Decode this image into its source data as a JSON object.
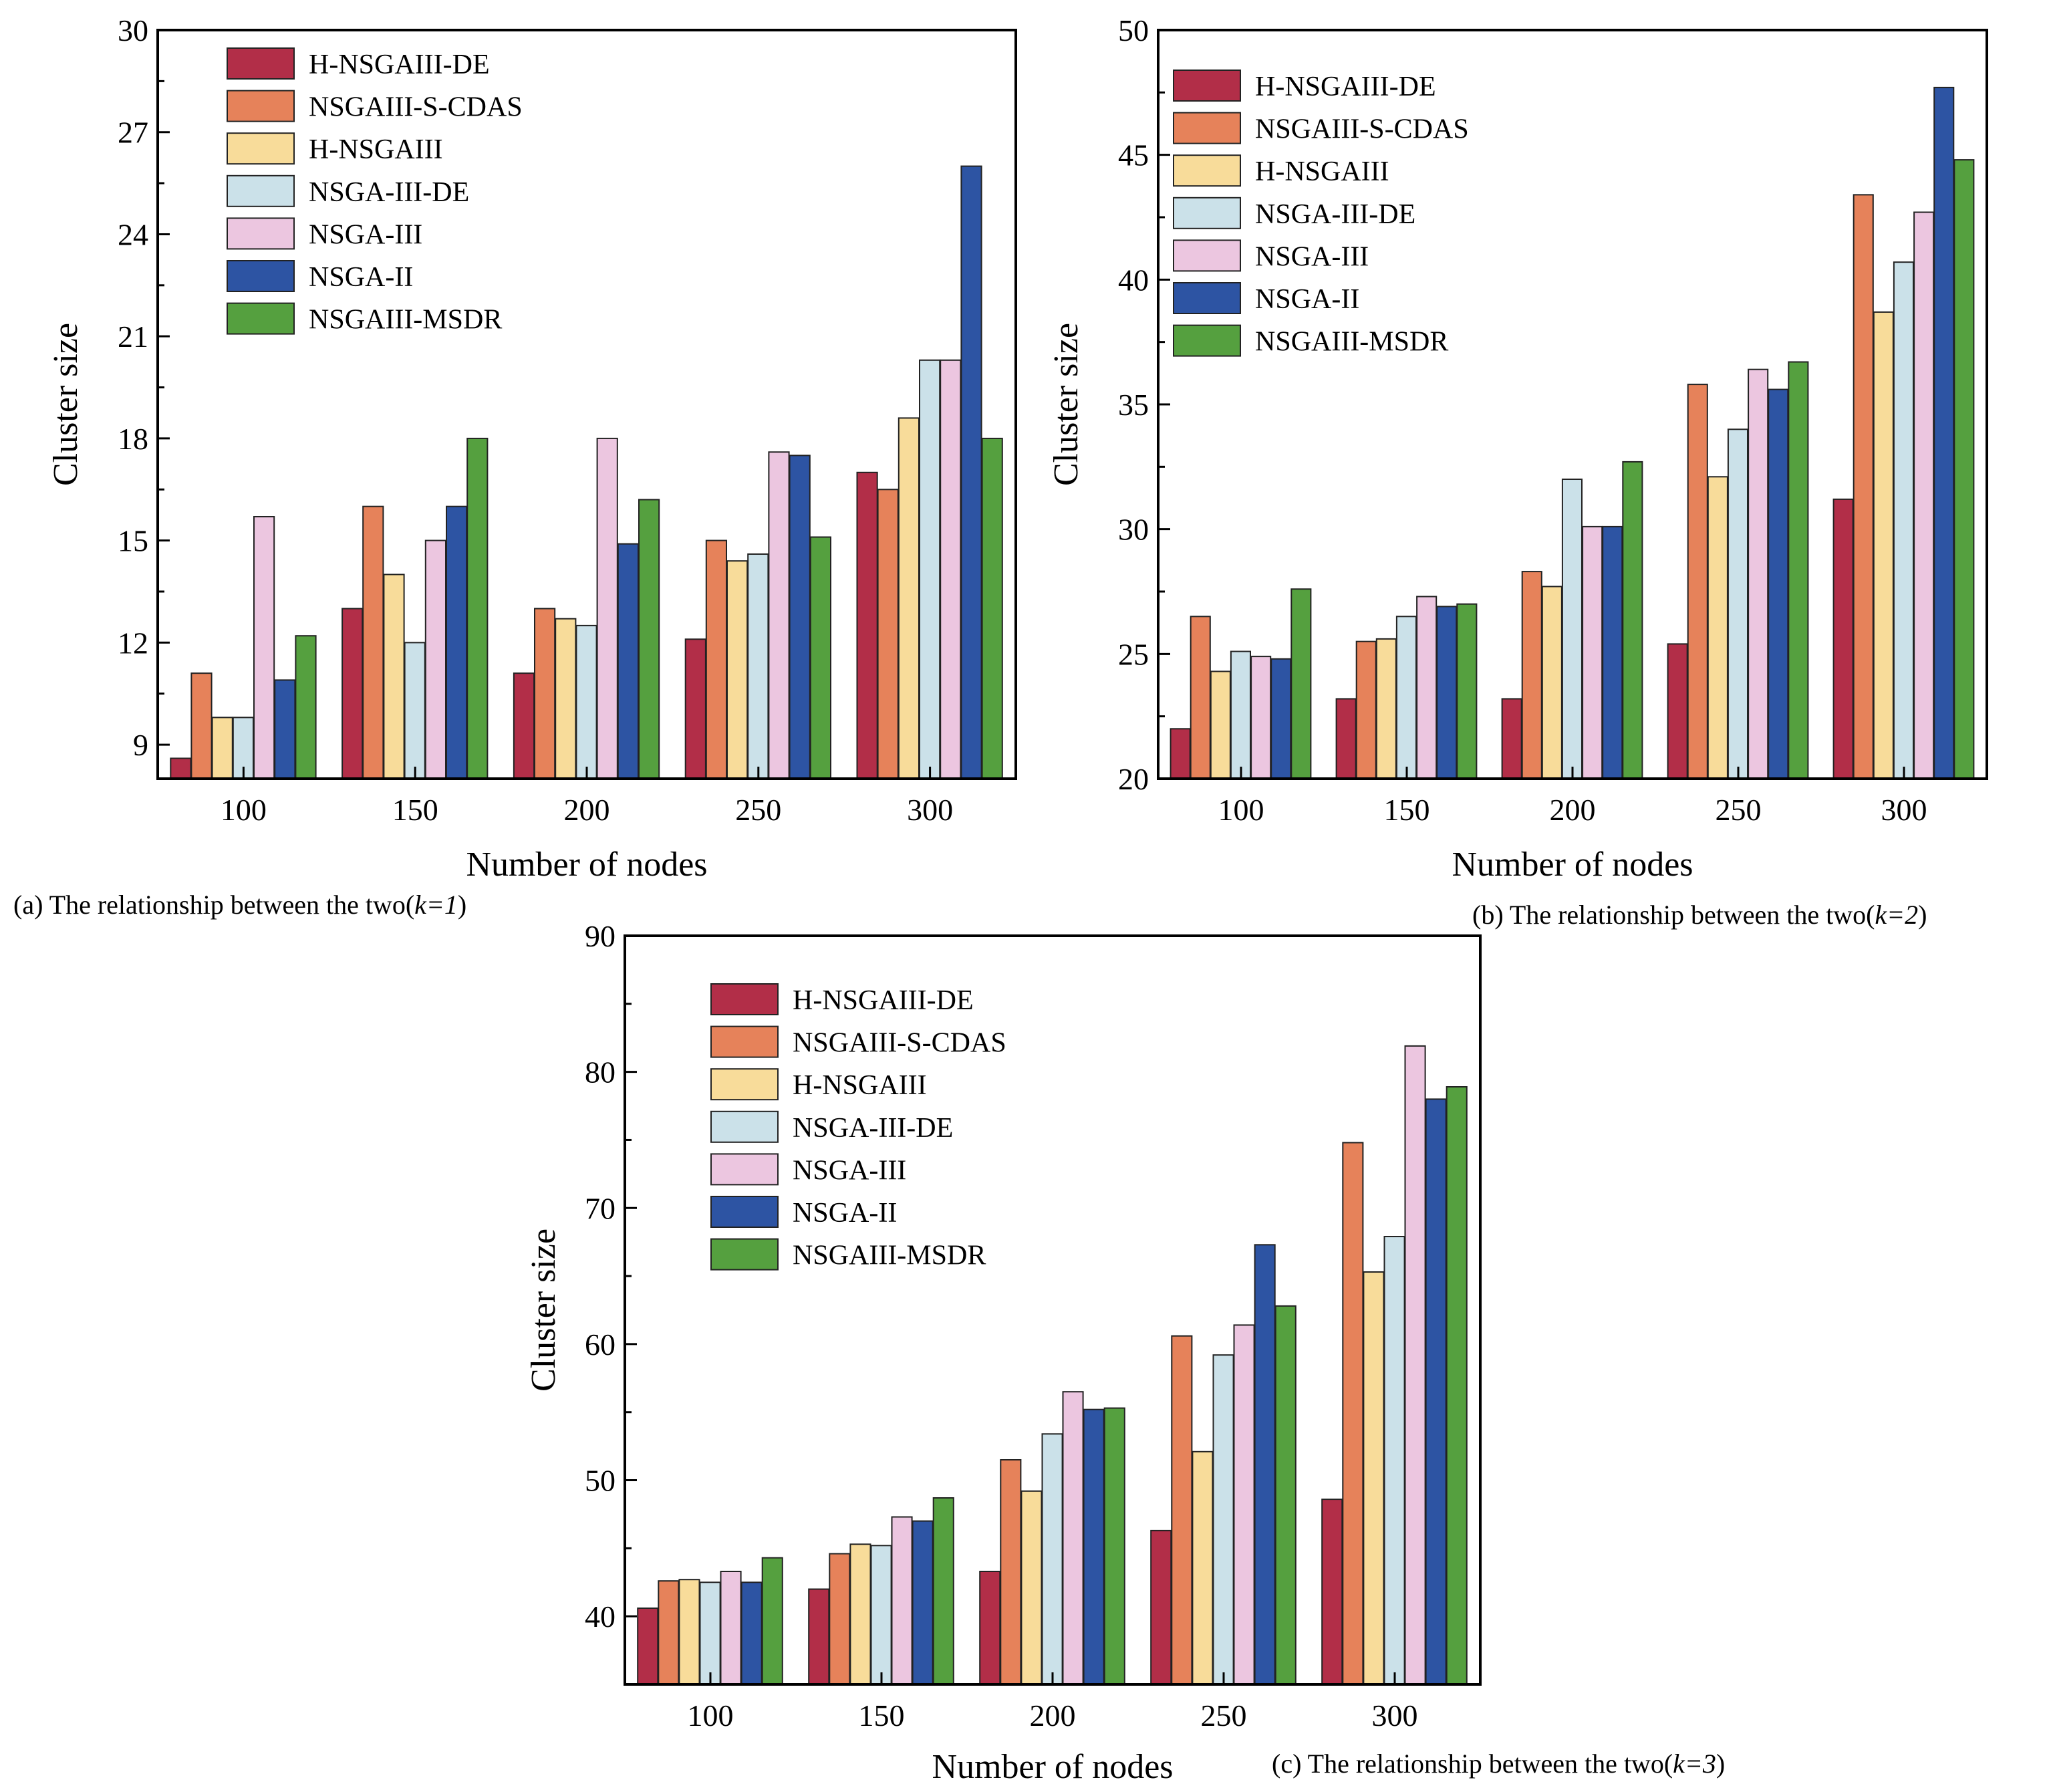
{
  "colors": {
    "H-NSGAIII-DE": "#b22e48",
    "NSGAIII-S-CDAS": "#e6825a",
    "H-NSGAIII": "#f8dc9a",
    "NSGA-III-DE": "#cbe1e9",
    "NSGA-III": "#ecc6e0",
    "NSGA-II": "#2d54a3",
    "NSGAIII-MSDR": "#55a03f"
  },
  "charts": [
    {
      "id": "a",
      "caption": {
        "prefix": "(a) The relationship between the two(",
        "k": "k=1",
        "suffix": ")"
      },
      "chart_data": {
        "type": "bar",
        "categories": [
          "100",
          "150",
          "200",
          "250",
          "300"
        ],
        "xlabel": "Number of nodes",
        "ylabel": "Cluster size",
        "ylim": [
          8,
          30
        ],
        "yticks": [
          "9",
          "12",
          "15",
          "18",
          "21",
          "24",
          "27",
          "30"
        ],
        "legend_position": "top-left",
        "series": [
          {
            "name": "H-NSGAIII-DE",
            "values": [
              8.6,
              13.0,
              11.1,
              12.1,
              17.0
            ]
          },
          {
            "name": "NSGAIII-S-CDAS",
            "values": [
              11.1,
              16.0,
              13.0,
              15.0,
              16.5
            ]
          },
          {
            "name": "H-NSGAIII",
            "values": [
              9.8,
              14.0,
              12.7,
              14.4,
              18.6
            ]
          },
          {
            "name": "NSGA-III-DE",
            "values": [
              9.8,
              12.0,
              12.5,
              14.6,
              20.3
            ]
          },
          {
            "name": "NSGA-III",
            "values": [
              15.7,
              15.0,
              18.0,
              17.6,
              20.3
            ]
          },
          {
            "name": "NSGA-II",
            "values": [
              10.9,
              16.0,
              14.9,
              17.5,
              26.0
            ]
          },
          {
            "name": "NSGAIII-MSDR",
            "values": [
              12.2,
              18.0,
              16.2,
              15.1,
              18.0
            ]
          }
        ]
      }
    },
    {
      "id": "b",
      "caption": {
        "prefix": "(b) The relationship between the two(",
        "k": "k=2",
        "suffix": ")"
      },
      "chart_data": {
        "type": "bar",
        "categories": [
          "100",
          "150",
          "200",
          "250",
          "300"
        ],
        "xlabel": "Number of nodes",
        "ylabel": "Cluster size",
        "ylim": [
          20,
          50
        ],
        "yticks": [
          "20",
          "25",
          "30",
          "35",
          "40",
          "45",
          "50"
        ],
        "legend_position": "top-left",
        "series": [
          {
            "name": "H-NSGAIII-DE",
            "values": [
              22.0,
              23.2,
              23.2,
              25.4,
              31.2
            ]
          },
          {
            "name": "NSGAIII-S-CDAS",
            "values": [
              26.5,
              25.5,
              28.3,
              35.8,
              43.4
            ]
          },
          {
            "name": "H-NSGAIII",
            "values": [
              24.3,
              25.6,
              27.7,
              32.1,
              38.7
            ]
          },
          {
            "name": "NSGA-III-DE",
            "values": [
              25.1,
              26.5,
              32.0,
              34.0,
              40.7
            ]
          },
          {
            "name": "NSGA-III",
            "values": [
              24.9,
              27.3,
              30.1,
              36.4,
              42.7
            ]
          },
          {
            "name": "NSGA-II",
            "values": [
              24.8,
              26.9,
              30.1,
              35.6,
              47.7
            ]
          },
          {
            "name": "NSGAIII-MSDR",
            "values": [
              27.6,
              27.0,
              32.7,
              36.7,
              44.8
            ]
          }
        ]
      }
    },
    {
      "id": "c",
      "caption": {
        "prefix": "(c) The relationship between the two(",
        "k": "k=3",
        "suffix": ")"
      },
      "chart_data": {
        "type": "bar",
        "categories": [
          "100",
          "150",
          "200",
          "250",
          "300"
        ],
        "xlabel": "Number of nodes",
        "ylabel": "Cluster size",
        "ylim": [
          35,
          90
        ],
        "yticks": [
          "40",
          "50",
          "60",
          "70",
          "80",
          "90"
        ],
        "legend_position": "top-left",
        "series": [
          {
            "name": "H-NSGAIII-DE",
            "values": [
              40.6,
              42.0,
              43.3,
              46.3,
              48.6
            ]
          },
          {
            "name": "NSGAIII-S-CDAS",
            "values": [
              42.6,
              44.6,
              51.5,
              60.6,
              74.8
            ]
          },
          {
            "name": "H-NSGAIII",
            "values": [
              42.7,
              45.3,
              49.2,
              52.1,
              65.3
            ]
          },
          {
            "name": "NSGA-III-DE",
            "values": [
              42.5,
              45.2,
              53.4,
              59.2,
              67.9
            ]
          },
          {
            "name": "NSGA-III",
            "values": [
              43.3,
              47.3,
              56.5,
              61.4,
              81.9
            ]
          },
          {
            "name": "NSGA-II",
            "values": [
              42.5,
              47.0,
              55.2,
              67.3,
              78.0
            ]
          },
          {
            "name": "NSGAIII-MSDR",
            "values": [
              44.3,
              48.7,
              55.3,
              62.8,
              78.9
            ]
          }
        ]
      }
    }
  ]
}
